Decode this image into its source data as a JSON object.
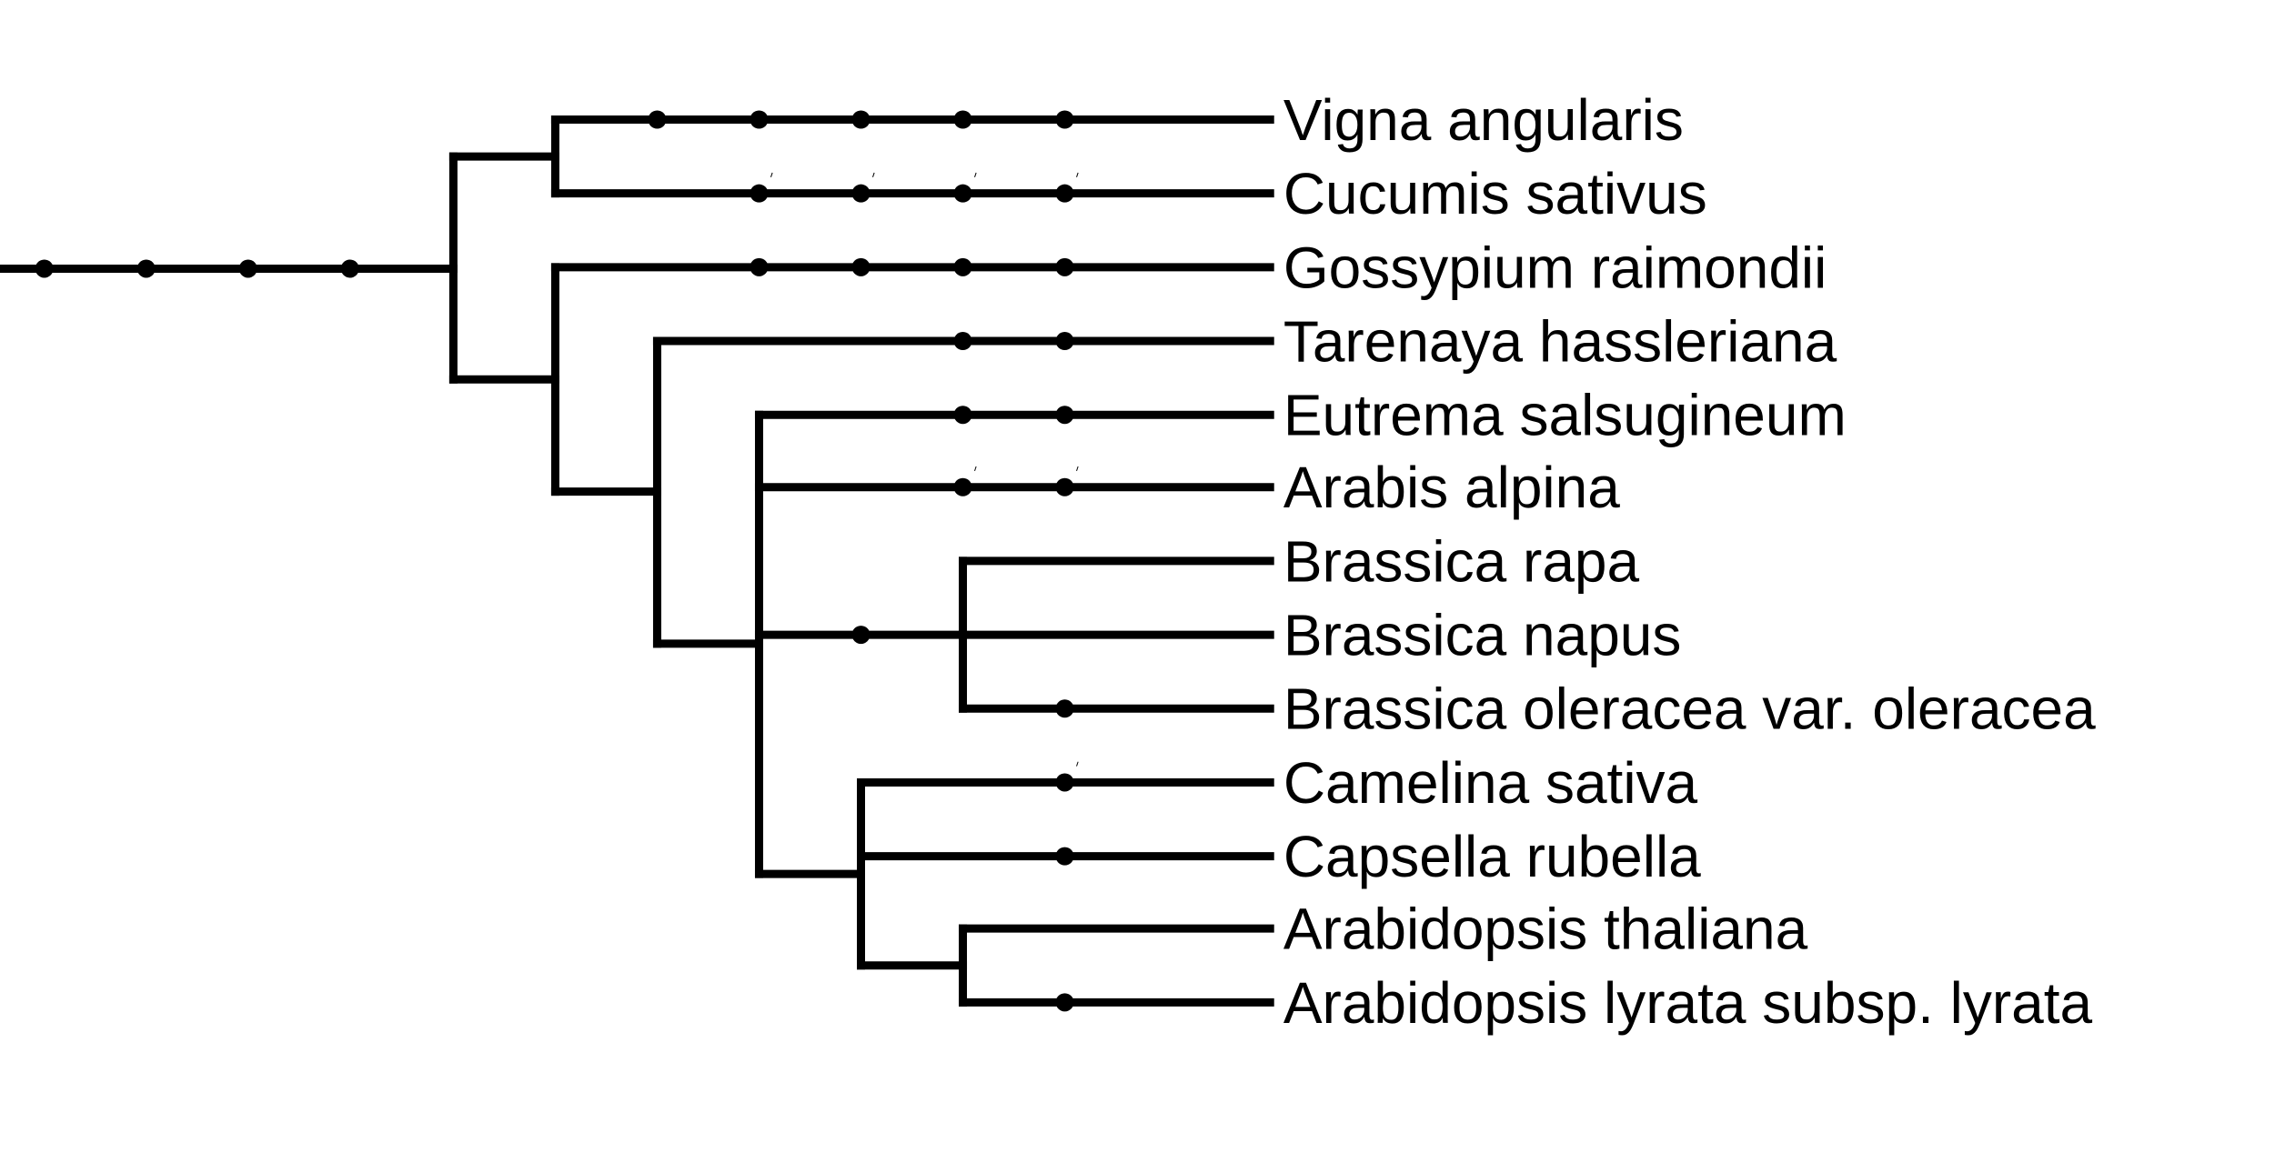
{
  "tree": {
    "leaves": [
      "Vigna angularis",
      "Cucumis sativus",
      "Gossypium raimondii",
      "Tarenaya hassleriana",
      "Eutrema salsugineum",
      "Arabis alpina",
      "Brassica rapa",
      "Brassica napus",
      "Brassica oleracea var. oleracea",
      "Camelina sativa",
      "Capsella rubella",
      "Arabidopsis thaliana",
      "Arabidopsis lyrata subsp. lyrata"
    ]
  }
}
